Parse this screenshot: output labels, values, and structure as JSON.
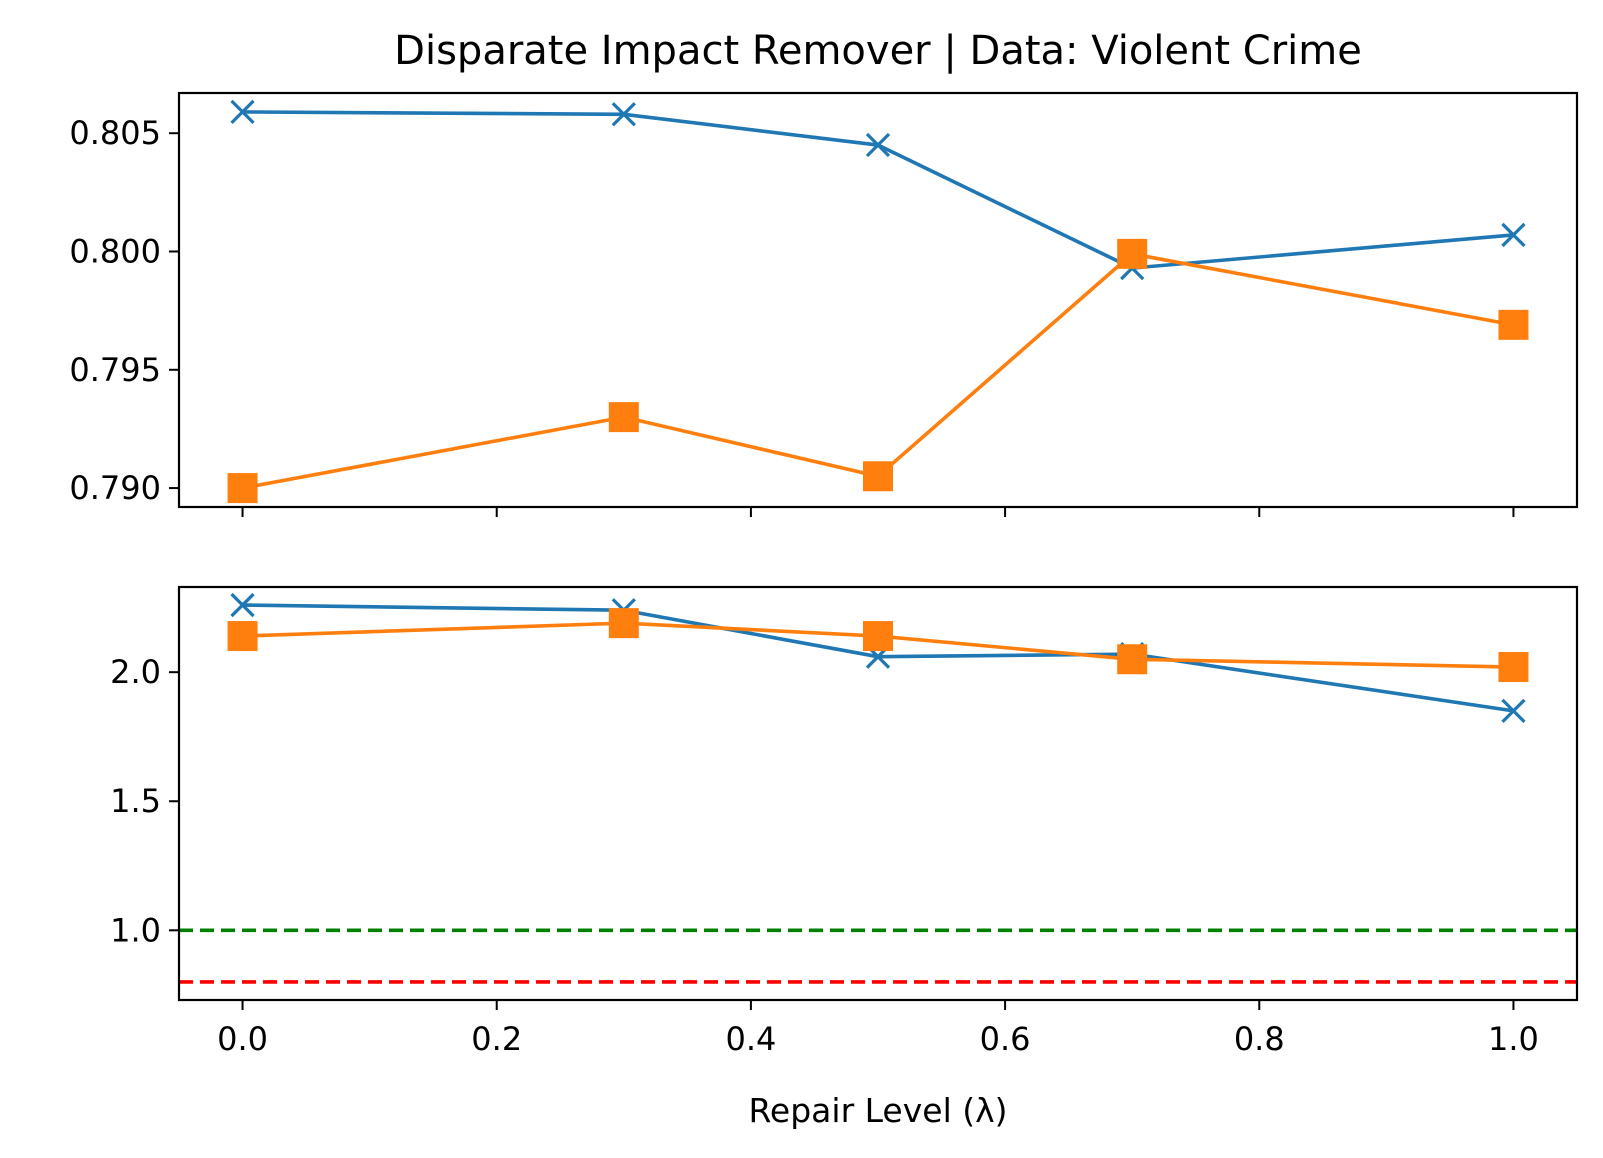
{
  "chart_data": {
    "type": "line",
    "title": "Disparate Impact Remover | Data: Violent Crime",
    "xlabel": "Repair Level (λ)",
    "x": [
      0.0,
      0.3,
      0.5,
      0.7,
      1.0
    ],
    "xlim": [
      -0.05,
      1.05
    ],
    "xticks": [
      0.0,
      0.2,
      0.4,
      0.6,
      0.8,
      1.0
    ],
    "xtick_labels": [
      "0.0",
      "0.2",
      "0.4",
      "0.6",
      "0.8",
      "1.0"
    ],
    "panels": [
      {
        "ylim": [
          0.7892,
          0.8067
        ],
        "yticks": [
          0.79,
          0.795,
          0.8,
          0.805
        ],
        "ytick_labels": [
          "0.790",
          "0.795",
          "0.800",
          "0.805"
        ],
        "show_xtick_labels": false,
        "series": [
          {
            "marker": "x",
            "color": "#1f77b4",
            "values": [
              0.8059,
              0.8058,
              0.8045,
              0.7993,
              0.8007
            ]
          },
          {
            "marker": "square",
            "color": "#ff7f0e",
            "values": [
              0.79,
              0.793,
              0.7905,
              0.7999,
              0.7969
            ]
          }
        ],
        "hlines": []
      },
      {
        "ylim": [
          0.73,
          2.33
        ],
        "yticks": [
          1.0,
          1.5,
          2.0
        ],
        "ytick_labels": [
          "1.0",
          "1.5",
          "2.0"
        ],
        "show_xtick_labels": true,
        "series": [
          {
            "marker": "x",
            "color": "#1f77b4",
            "values": [
              2.26,
              2.24,
              2.06,
              2.07,
              1.85
            ]
          },
          {
            "marker": "square",
            "color": "#ff7f0e",
            "values": [
              2.14,
              2.19,
              2.14,
              2.05,
              2.02
            ]
          }
        ],
        "hlines": [
          {
            "y": 1.0,
            "color": "#008000",
            "style": "dashed"
          },
          {
            "y": 0.8,
            "color": "#ff0000",
            "style": "dashed"
          }
        ]
      }
    ],
    "grid": false,
    "legend": "none"
  }
}
